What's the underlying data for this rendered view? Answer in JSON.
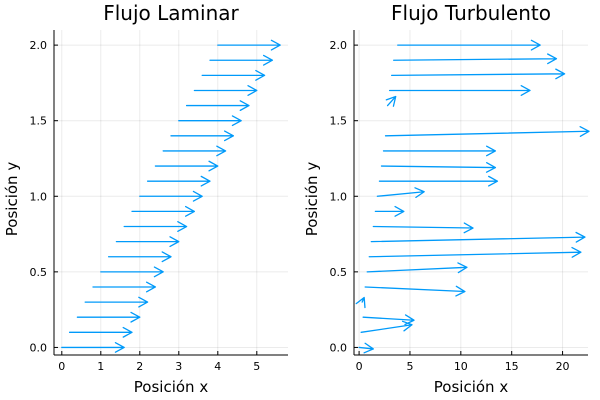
{
  "accent": "#009AFA",
  "chart_data": [
    {
      "type": "quiver",
      "title": "Flujo Laminar",
      "xlabel": "Posición x",
      "ylabel": "Posición y",
      "xlim": [
        -0.2,
        5.8
      ],
      "ylim": [
        -0.05,
        2.1
      ],
      "xticks": [
        0,
        1,
        2,
        3,
        4,
        5
      ],
      "yticks": [
        0.0,
        0.5,
        1.0,
        1.5,
        2.0
      ],
      "ytick_labels": [
        "0.0",
        "0.5",
        "1.0",
        "1.5",
        "2.0"
      ],
      "grid": true,
      "arrows": [
        {
          "x": 0.0,
          "y": 0.0,
          "u": 1.6
        },
        {
          "x": 0.2,
          "y": 0.1,
          "u": 1.6
        },
        {
          "x": 0.4,
          "y": 0.2,
          "u": 1.6
        },
        {
          "x": 0.6,
          "y": 0.3,
          "u": 1.6
        },
        {
          "x": 0.8,
          "y": 0.4,
          "u": 1.6
        },
        {
          "x": 1.0,
          "y": 0.5,
          "u": 1.6
        },
        {
          "x": 1.2,
          "y": 0.6,
          "u": 1.6
        },
        {
          "x": 1.4,
          "y": 0.7,
          "u": 1.6
        },
        {
          "x": 1.6,
          "y": 0.8,
          "u": 1.6
        },
        {
          "x": 1.8,
          "y": 0.9,
          "u": 1.6
        },
        {
          "x": 2.0,
          "y": 1.0,
          "u": 1.6
        },
        {
          "x": 2.2,
          "y": 1.1,
          "u": 1.6
        },
        {
          "x": 2.4,
          "y": 1.2,
          "u": 1.6
        },
        {
          "x": 2.6,
          "y": 1.3,
          "u": 1.6
        },
        {
          "x": 2.8,
          "y": 1.4,
          "u": 1.6
        },
        {
          "x": 3.0,
          "y": 1.5,
          "u": 1.6
        },
        {
          "x": 3.2,
          "y": 1.6,
          "u": 1.6
        },
        {
          "x": 3.4,
          "y": 1.7,
          "u": 1.6
        },
        {
          "x": 3.6,
          "y": 1.8,
          "u": 1.6
        },
        {
          "x": 3.8,
          "y": 1.9,
          "u": 1.6
        },
        {
          "x": 4.0,
          "y": 2.0,
          "u": 1.6
        }
      ]
    },
    {
      "type": "quiver",
      "title": "Flujo Turbulento",
      "xlabel": "Posición x",
      "ylabel": "Posición y",
      "xlim": [
        -0.5,
        22.5
      ],
      "ylim": [
        -0.05,
        2.1
      ],
      "xticks": [
        0,
        5,
        10,
        15,
        20
      ],
      "yticks": [
        0.0,
        0.5,
        1.0,
        1.5,
        2.0
      ],
      "ytick_labels": [
        "0.0",
        "0.5",
        "1.0",
        "1.5",
        "2.0"
      ],
      "grid": true,
      "arrows": [
        {
          "x": 0.0,
          "y": 0.0,
          "u": 1.4,
          "v": -0.01
        },
        {
          "x": 0.2,
          "y": 0.1,
          "u": 5.0,
          "v": 0.05
        },
        {
          "x": 0.4,
          "y": 0.2,
          "u": 5.0,
          "v": -0.02
        },
        {
          "x": 0.3,
          "y": 0.3,
          "u": 0.2,
          "v": 0.03
        },
        {
          "x": 0.6,
          "y": 0.4,
          "u": 9.8,
          "v": -0.03
        },
        {
          "x": 0.8,
          "y": 0.5,
          "u": 9.8,
          "v": 0.03
        },
        {
          "x": 1.0,
          "y": 0.6,
          "u": 20.8,
          "v": 0.03
        },
        {
          "x": 1.2,
          "y": 0.7,
          "u": 21.0,
          "v": 0.03
        },
        {
          "x": 1.4,
          "y": 0.8,
          "u": 9.8,
          "v": -0.01
        },
        {
          "x": 1.6,
          "y": 0.9,
          "u": 2.8,
          "v": 0.0
        },
        {
          "x": 1.8,
          "y": 1.0,
          "u": 4.6,
          "v": 0.03
        },
        {
          "x": 2.0,
          "y": 1.1,
          "u": 11.6,
          "v": 0.0
        },
        {
          "x": 2.2,
          "y": 1.2,
          "u": 11.2,
          "v": -0.01
        },
        {
          "x": 2.4,
          "y": 1.3,
          "u": 11.0,
          "v": 0.0
        },
        {
          "x": 2.6,
          "y": 1.4,
          "u": 20.0,
          "v": 0.03
        },
        {
          "x": 2.8,
          "y": 1.6,
          "u": 0.8,
          "v": 0.06
        },
        {
          "x": 3.0,
          "y": 1.7,
          "u": 13.8,
          "v": 0.0
        },
        {
          "x": 3.2,
          "y": 1.8,
          "u": 17.0,
          "v": 0.01
        },
        {
          "x": 3.4,
          "y": 1.9,
          "u": 16.0,
          "v": 0.01
        },
        {
          "x": 3.8,
          "y": 2.0,
          "u": 14.0,
          "v": 0.0
        }
      ]
    }
  ]
}
